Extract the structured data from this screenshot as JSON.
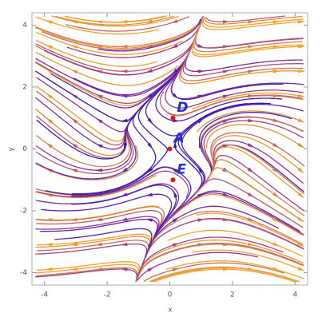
{
  "chart_data": {
    "type": "streamplot",
    "xlabel": "x",
    "ylabel": "y",
    "xlim": [
      -4.4,
      4.4
    ],
    "ylim": [
      -4.4,
      4.4
    ],
    "xticks": [
      -4,
      -2,
      0,
      2,
      4
    ],
    "yticks": [
      -4,
      -2,
      0,
      2,
      4
    ],
    "point_color": "#e8141a",
    "label_color": "#2b2bd6",
    "points": [
      {
        "label": "A",
        "x": 0,
        "y": 0
      },
      {
        "label": "D",
        "x": 0.1,
        "y": 1
      },
      {
        "label": "E",
        "x": 0.1,
        "y": -1
      }
    ]
  }
}
